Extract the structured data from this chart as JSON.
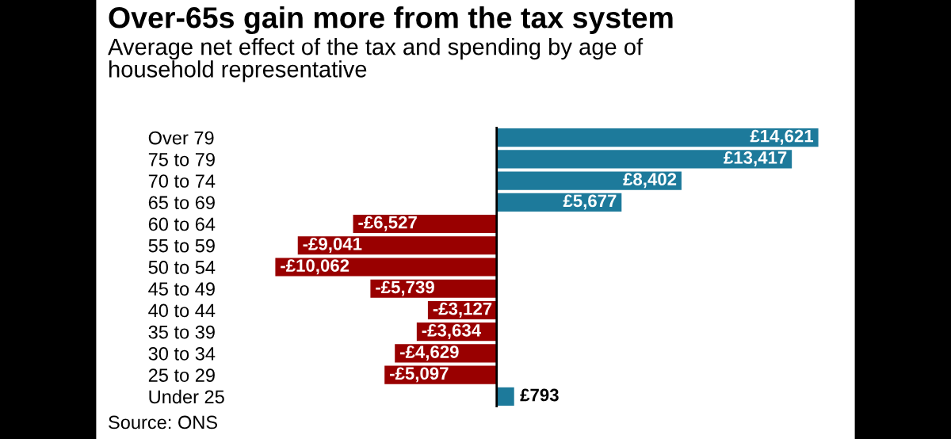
{
  "chart_data": {
    "type": "bar",
    "orientation": "horizontal",
    "title": "Over-65s gain more from the tax system",
    "subtitle": "Average net effect of the tax and spending by age of\nhousehold representative",
    "categories": [
      "Over 79",
      "75 to 79",
      "70 to 74",
      "65 to 69",
      "60 to 64",
      "55 to 59",
      "50 to 54",
      "45 to 49",
      "40 to 44",
      "35 to 39",
      "30 to 34",
      "25 to 29",
      "Under 25"
    ],
    "values": [
      14621,
      13417,
      8402,
      5677,
      -6527,
      -9041,
      -10062,
      -5739,
      -3127,
      -3634,
      -4629,
      -5097,
      793
    ],
    "colors": [
      "#1d7a9b",
      "#1d7a9b",
      "#1d7a9b",
      "#1d7a9b",
      "#990000",
      "#990000",
      "#990000",
      "#990000",
      "#990000",
      "#990000",
      "#990000",
      "#990000",
      "#1d7a9b"
    ],
    "value_labels": [
      "£14,621",
      "£13,417",
      "£8,402",
      "£5,677",
      "-£6,527",
      "-£9,041",
      "-£10,062",
      "-£5,739",
      "-£3,127",
      "-£3,634",
      "-£4,629",
      "-£5,097",
      "£793"
    ],
    "grid": false,
    "annotations": [
      "Source: ONS"
    ]
  }
}
